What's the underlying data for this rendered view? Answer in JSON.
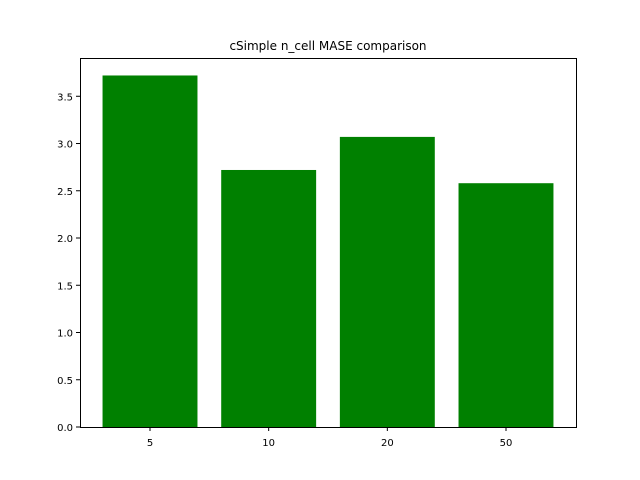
{
  "chart_data": {
    "type": "bar",
    "title": "cSimple n_cell MASE comparison",
    "xlabel": "",
    "ylabel": "",
    "categories": [
      "5",
      "10",
      "20",
      "50"
    ],
    "values": [
      3.72,
      2.72,
      3.07,
      2.58
    ],
    "ylim": [
      0,
      3.905
    ],
    "yticks": [
      0.0,
      0.5,
      1.0,
      1.5,
      2.0,
      2.5,
      3.0,
      3.5
    ],
    "ytick_labels": [
      "0.0",
      "0.5",
      "1.0",
      "1.5",
      "2.0",
      "2.5",
      "3.0",
      "3.5"
    ],
    "bar_color": "#008000",
    "grid": false,
    "legend": "none"
  }
}
